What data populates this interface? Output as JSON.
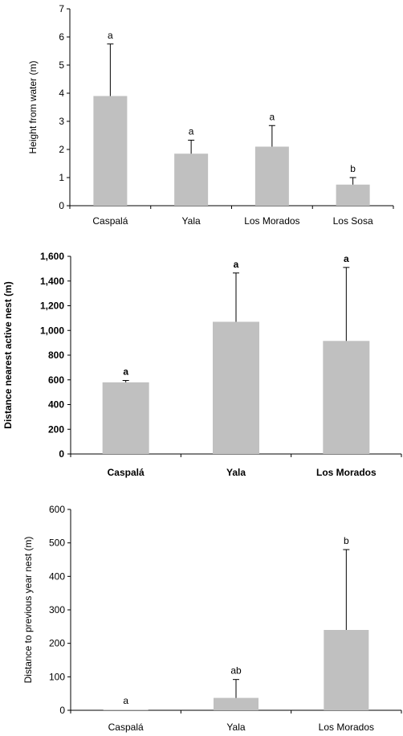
{
  "chart_data": [
    {
      "type": "bar",
      "ylabel": "Height from water (m)",
      "categories": [
        "Caspalá",
        "Yala",
        "Los Morados",
        "Los Sosa"
      ],
      "values": [
        3.9,
        1.85,
        2.1,
        0.75
      ],
      "errors": [
        1.85,
        0.48,
        0.75,
        0.25
      ],
      "labels": [
        "a",
        "a",
        "a",
        "b"
      ],
      "ylim": [
        0,
        7
      ],
      "yticks": [
        0,
        1,
        2,
        3,
        4,
        5,
        6,
        7
      ],
      "ytick_labels": [
        "0",
        "1",
        "2",
        "3",
        "4",
        "5",
        "6",
        "7"
      ],
      "bold": false
    },
    {
      "type": "bar",
      "ylabel": "Distance nearest active nest (m)",
      "categories": [
        "Caspalá",
        "Yala",
        "Los Morados"
      ],
      "values": [
        580,
        1070,
        915
      ],
      "errors": [
        15,
        395,
        595
      ],
      "labels": [
        "a",
        "a",
        "a"
      ],
      "ylim": [
        0,
        1600
      ],
      "yticks": [
        0,
        200,
        400,
        600,
        800,
        1000,
        1200,
        1400,
        1600
      ],
      "ytick_labels": [
        "0",
        "200",
        "400",
        "600",
        "800",
        "1,000",
        "1,200",
        "1,400",
        "1,600"
      ],
      "bold": true
    },
    {
      "type": "bar",
      "ylabel": "Distance to previous year nest (m)",
      "categories": [
        "Caspalá",
        "Yala",
        "Los Morados"
      ],
      "values": [
        2,
        37,
        240
      ],
      "errors": [
        0,
        55,
        240
      ],
      "labels": [
        "a",
        "ab",
        "b"
      ],
      "ylim": [
        0,
        600
      ],
      "yticks": [
        0,
        100,
        200,
        300,
        400,
        500,
        600
      ],
      "ytick_labels": [
        "0",
        "100",
        "200",
        "300",
        "400",
        "500",
        "600"
      ],
      "bold": false
    }
  ]
}
